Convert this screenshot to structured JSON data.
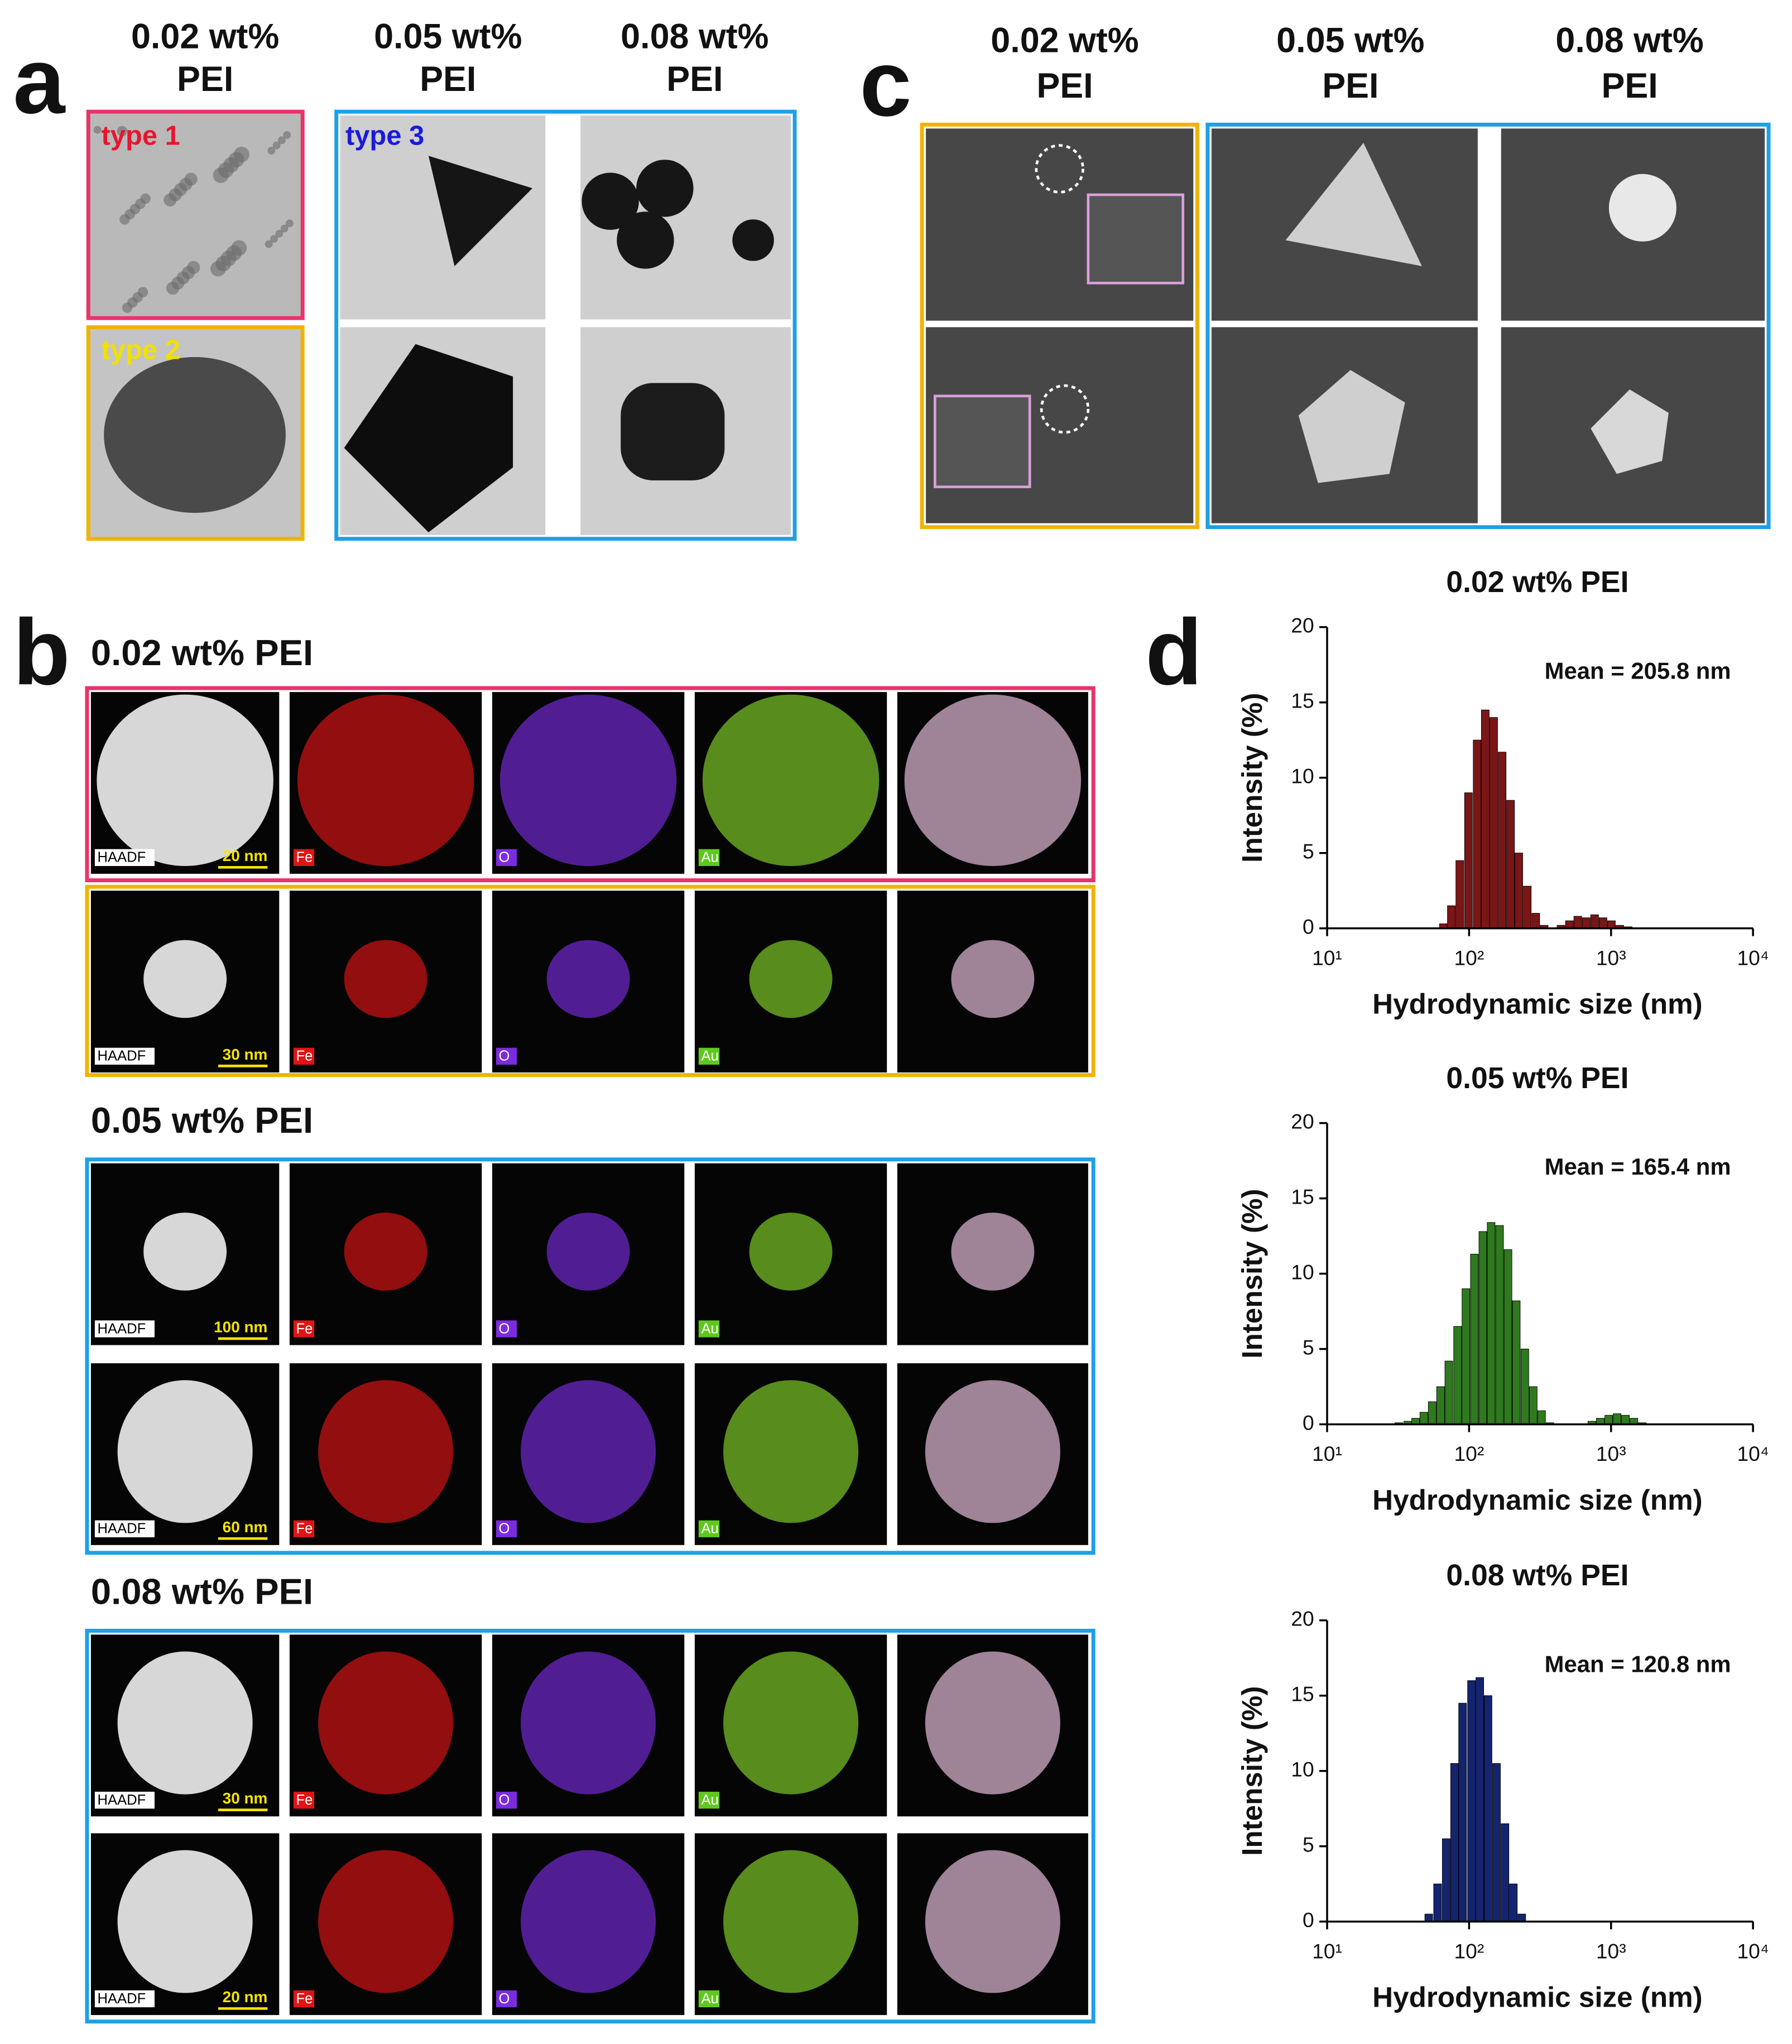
{
  "panel_a": {
    "label": "a",
    "columns": [
      [
        "0.02 wt%",
        "PEI"
      ],
      [
        "0.05 wt%",
        "PEI"
      ],
      [
        "0.08 wt%",
        "PEI"
      ]
    ],
    "types": [
      "type 1",
      "type 2",
      "type 3"
    ]
  },
  "panel_b": {
    "label": "b",
    "channels": [
      "HAADF",
      "Fe",
      "O",
      "Au"
    ],
    "sections": [
      {
        "title": "0.02 wt% PEI",
        "rows": [
          {
            "scale_bar": "20 nm"
          },
          {
            "scale_bar": "30 nm"
          }
        ]
      },
      {
        "title": "0.05 wt% PEI",
        "rows": [
          {
            "scale_bar": "100 nm"
          },
          {
            "scale_bar": "60 nm"
          }
        ]
      },
      {
        "title": "0.08 wt% PEI",
        "rows": [
          {
            "scale_bar": "30 nm"
          },
          {
            "scale_bar": "20 nm"
          }
        ]
      }
    ]
  },
  "panel_c": {
    "label": "c",
    "columns": [
      [
        "0.02 wt%",
        "PEI"
      ],
      [
        "0.05 wt%",
        "PEI"
      ],
      [
        "0.08 wt%",
        "PEI"
      ]
    ]
  },
  "panel_d": {
    "label": "d"
  },
  "chart_data": [
    {
      "type": "bar",
      "title": "0.02 wt% PEI",
      "annotation": "Mean = 205.8 nm",
      "xlabel": "Hydrodynamic size (nm)",
      "ylabel": "Intensity (%)",
      "log_x": true,
      "color": "#7a1616",
      "x": [
        66,
        75,
        86,
        99,
        114,
        130,
        149,
        171,
        196,
        224,
        257,
        295,
        338,
        387,
        444,
        509,
        583,
        668,
        766,
        878,
        1006,
        1153,
        1321
      ],
      "values": [
        0.3,
        1.5,
        4.5,
        9,
        12.5,
        14.5,
        14,
        11.7,
        8.5,
        5,
        2.8,
        1,
        0.2,
        0,
        0.2,
        0.5,
        0.8,
        0.7,
        0.9,
        0.7,
        0.5,
        0.2,
        0.1
      ],
      "xlim": [
        10,
        10000
      ],
      "xticks": [
        {
          "value": 10,
          "label": "10¹"
        },
        {
          "value": 100,
          "label": "10²"
        },
        {
          "value": 1000,
          "label": "10³"
        },
        {
          "value": 10000,
          "label": "10⁴"
        }
      ],
      "ylim": [
        0,
        20
      ],
      "yticks": [
        0,
        5,
        10,
        15,
        20
      ]
    },
    {
      "type": "bar",
      "title": "0.05 wt% PEI",
      "annotation": "Mean = 165.4 nm",
      "xlabel": "Hydrodynamic size (nm)",
      "ylabel": "Intensity (%)",
      "log_x": true,
      "color": "#2f7a1f",
      "x": [
        32,
        37,
        42,
        48,
        55,
        63,
        72,
        83,
        95,
        109,
        125,
        143,
        164,
        188,
        215,
        247,
        283,
        324,
        371,
        425,
        487,
        558,
        640,
        733,
        840,
        963,
        1103,
        1264,
        1449,
        1660
      ],
      "values": [
        0.1,
        0.2,
        0.4,
        0.8,
        1.5,
        2.5,
        4.2,
        6.5,
        9,
        11.3,
        12.8,
        13.4,
        13.2,
        11.6,
        8.2,
        5,
        2.5,
        0.9,
        0.1,
        0,
        0,
        0,
        0,
        0.2,
        0.4,
        0.6,
        0.7,
        0.6,
        0.4,
        0.1
      ],
      "xlim": [
        10,
        10000
      ],
      "xticks": [
        {
          "value": 10,
          "label": "10¹"
        },
        {
          "value": 100,
          "label": "10²"
        },
        {
          "value": 1000,
          "label": "10³"
        },
        {
          "value": 10000,
          "label": "10⁴"
        }
      ],
      "ylim": [
        0,
        20
      ],
      "yticks": [
        0,
        5,
        10,
        15,
        20
      ]
    },
    {
      "type": "bar",
      "title": "0.08 wt% PEI",
      "annotation": "Mean = 120.8 nm",
      "xlabel": "Hydrodynamic size (nm)",
      "ylabel": "Intensity (%)",
      "log_x": true,
      "color": "#15246e",
      "x": [
        52,
        60,
        69,
        79,
        90,
        104,
        119,
        136,
        156,
        179,
        205,
        235
      ],
      "values": [
        0.5,
        2.5,
        5.5,
        10.5,
        14.5,
        16,
        16.2,
        15,
        10.5,
        6.5,
        2.5,
        0.5
      ],
      "xlim": [
        10,
        10000
      ],
      "xticks": [
        {
          "value": 10,
          "label": "10¹"
        },
        {
          "value": 100,
          "label": "10²"
        },
        {
          "value": 1000,
          "label": "10³"
        },
        {
          "value": 10000,
          "label": "10⁴"
        }
      ],
      "ylim": [
        0,
        20
      ],
      "yticks": [
        0,
        5,
        10,
        15,
        20
      ]
    }
  ]
}
